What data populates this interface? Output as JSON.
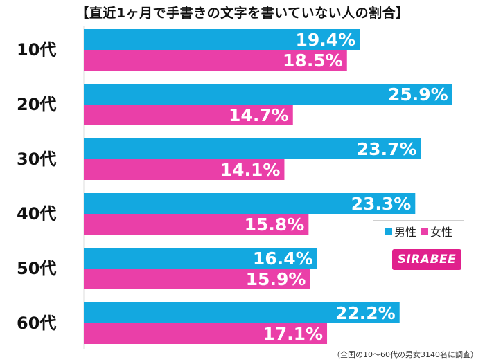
{
  "title": "【直近1ヶ月で手書きの文字を書いていない人の割合】",
  "chart_data": {
    "type": "bar",
    "orientation": "horizontal",
    "categories": [
      "10代",
      "20代",
      "30代",
      "40代",
      "50代",
      "60代"
    ],
    "series": [
      {
        "name": "男性",
        "color": "#13a8e0",
        "values": [
          19.4,
          25.9,
          23.7,
          23.3,
          16.4,
          22.2
        ]
      },
      {
        "name": "女性",
        "color": "#ea3fa8",
        "values": [
          18.5,
          14.7,
          14.1,
          15.8,
          15.9,
          17.1
        ]
      }
    ],
    "value_suffix": "%",
    "xlim": [
      0,
      26.5
    ],
    "grid": false,
    "legend_position": "right"
  },
  "logo_text": "SIRABEE",
  "note": "（全国の10〜60代の男女3140名に調査）"
}
